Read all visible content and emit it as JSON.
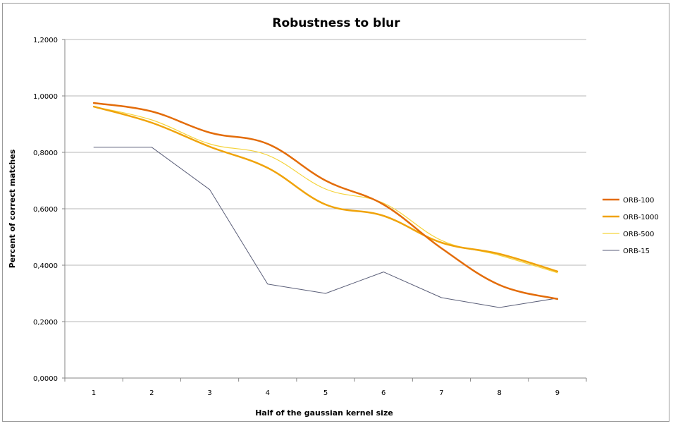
{
  "chart_data": {
    "type": "line",
    "title": "Robustness to blur",
    "xlabel": "Half of the gaussian kernel size",
    "ylabel": "Percent of correct matches",
    "x": [
      1,
      2,
      3,
      4,
      5,
      6,
      7,
      8,
      9
    ],
    "x_tick_labels": [
      "1",
      "2",
      "3",
      "4",
      "5",
      "6",
      "7",
      "8",
      "9"
    ],
    "ylim": [
      0,
      1.2
    ],
    "y_ticks": [
      0,
      0.2,
      0.4,
      0.6,
      0.8,
      1.0,
      1.2
    ],
    "y_tick_labels": [
      "0,0000",
      "0,2000",
      "0,4000",
      "0,6000",
      "0,8000",
      "1,0000",
      "1,2000"
    ],
    "grid": true,
    "legend_position": "right",
    "series": [
      {
        "name": "ORB-100",
        "color": "#e36c09",
        "width": 2.5,
        "values": [
          0.975,
          0.945,
          0.87,
          0.83,
          0.7,
          0.615,
          0.46,
          0.33,
          0.28
        ]
      },
      {
        "name": "ORB-1000",
        "color": "#f0a30a",
        "width": 2.5,
        "values": [
          0.962,
          0.905,
          0.82,
          0.745,
          0.615,
          0.575,
          0.48,
          0.44,
          0.378
        ]
      },
      {
        "name": "ORB-500",
        "color": "#f5d33a",
        "width": 1.2,
        "values": [
          0.962,
          0.915,
          0.83,
          0.79,
          0.67,
          0.62,
          0.488,
          0.435,
          0.373
        ]
      },
      {
        "name": "ORB-15",
        "color": "#5a5e78",
        "width": 1.0,
        "values": [
          0.818,
          0.818,
          0.668,
          0.333,
          0.3,
          0.376,
          0.285,
          0.25,
          0.283
        ]
      }
    ]
  }
}
